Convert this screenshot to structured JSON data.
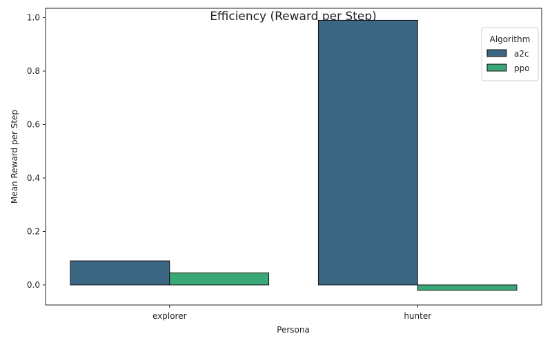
{
  "chart_data": {
    "type": "bar",
    "title": "Efficiency (Reward per Step)",
    "xlabel": "Persona",
    "ylabel": "Mean Reward per Step",
    "categories": [
      "explorer",
      "hunter"
    ],
    "series": [
      {
        "name": "a2c",
        "values": [
          0.09,
          0.99
        ],
        "color": "#3d6685"
      },
      {
        "name": "ppo",
        "values": [
          0.045,
          -0.02
        ],
        "color": "#3aa876"
      }
    ],
    "ylim": [
      -0.075,
      1.035
    ],
    "yticks": [
      0.0,
      0.2,
      0.4,
      0.6,
      0.8,
      1.0
    ],
    "ytick_labels": [
      "0.0",
      "0.2",
      "0.4",
      "0.6",
      "0.8",
      "1.0"
    ],
    "grid": false,
    "legend": {
      "title": "Algorithm",
      "position": "top-right"
    }
  }
}
